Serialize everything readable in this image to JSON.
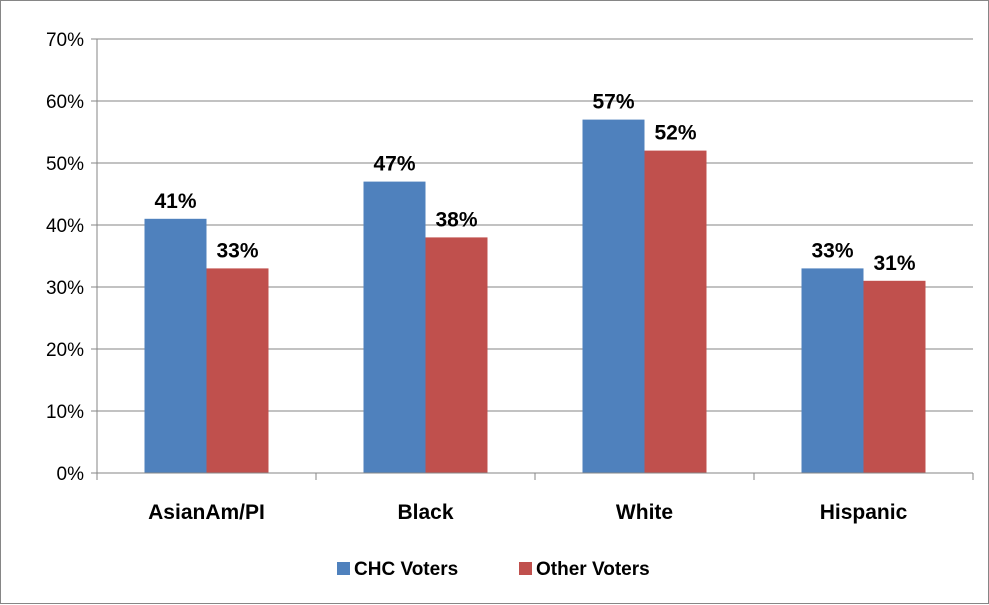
{
  "chart_data": {
    "type": "bar",
    "categories": [
      "AsianAm/PI",
      "Black",
      "White",
      "Hispanic"
    ],
    "series": [
      {
        "name": "CHC Voters",
        "values": [
          41,
          47,
          57,
          33
        ],
        "color": "#4f81bd",
        "labels": [
          "41%",
          "47%",
          "57%",
          "33%"
        ]
      },
      {
        "name": "Other Voters",
        "values": [
          33,
          38,
          52,
          31
        ],
        "color": "#c0504d",
        "labels": [
          "33%",
          "38%",
          "52%",
          "31%"
        ]
      }
    ],
    "yticks": [
      "0%",
      "10%",
      "20%",
      "30%",
      "40%",
      "50%",
      "60%",
      "70%"
    ],
    "ylim": [
      0,
      70
    ],
    "grid": true,
    "legend_position": "bottom",
    "title": "",
    "xlabel": "",
    "ylabel": ""
  }
}
